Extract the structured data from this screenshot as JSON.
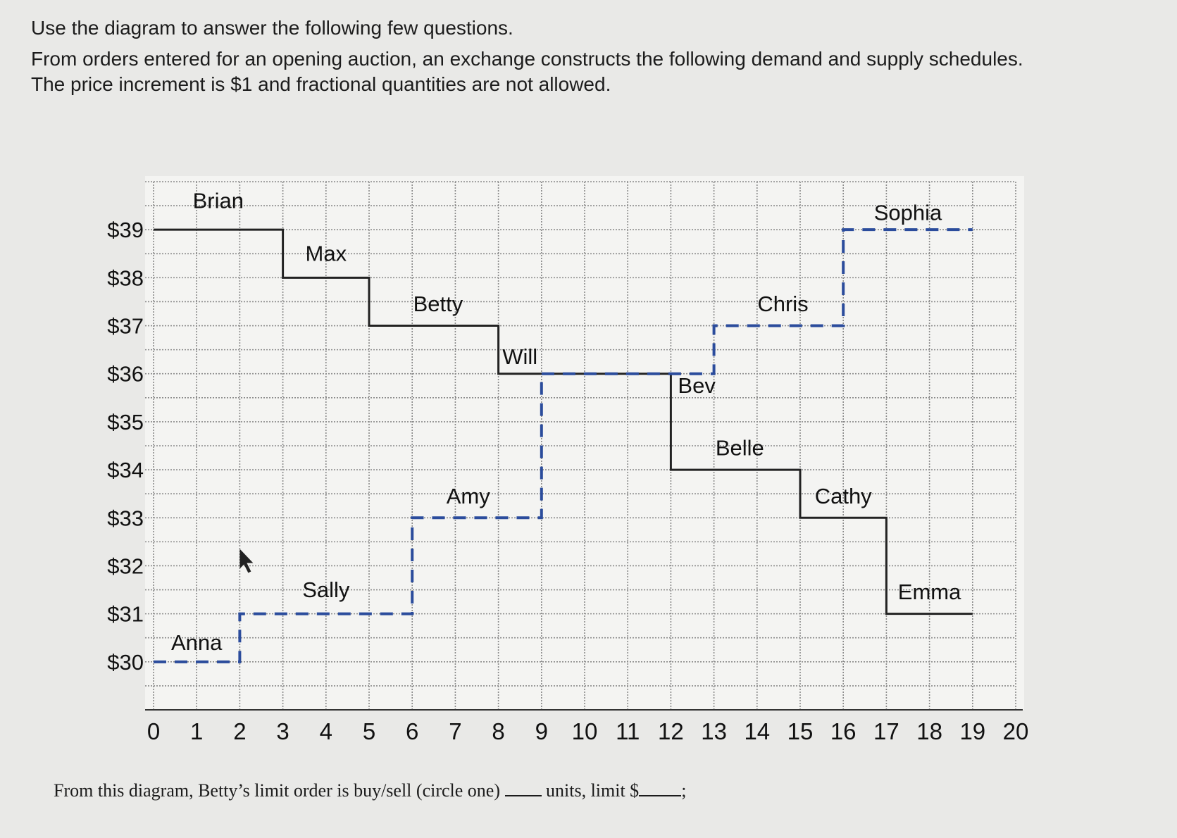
{
  "instructions": {
    "line1": "Use the diagram to answer the following few questions.",
    "line2": "From orders entered for an opening auction, an exchange constructs the following demand and supply schedules.",
    "line3": "The price increment is $1 and fractional quantities are not allowed."
  },
  "question": {
    "part1": "From this diagram, Betty’s limit order is buy/sell (circle one)",
    "part2": "units, limit $",
    "part3": ";"
  },
  "chart_data": {
    "type": "line",
    "x_ticks": [
      "0",
      "1",
      "2",
      "3",
      "4",
      "5",
      "6",
      "7",
      "8",
      "9",
      "10",
      "11",
      "12",
      "13",
      "14",
      "15",
      "16",
      "17",
      "18",
      "19",
      "20"
    ],
    "y_ticks": [
      "$30",
      "$31",
      "$32",
      "$33",
      "$34",
      "$35",
      "$36",
      "$37",
      "$38",
      "$39"
    ],
    "xlim": [
      0,
      20
    ],
    "ylim": [
      29,
      40
    ],
    "grid": true,
    "colors": {
      "demand": "#222222",
      "supply": "#2b4c9c"
    },
    "series": [
      {
        "style": "solid",
        "points": [
          [
            0,
            39
          ],
          [
            3,
            39
          ],
          [
            3,
            38
          ],
          [
            5,
            38
          ],
          [
            5,
            37
          ],
          [
            8,
            37
          ],
          [
            8,
            36
          ],
          [
            12,
            36
          ],
          [
            12,
            34
          ],
          [
            15,
            34
          ],
          [
            15,
            33
          ],
          [
            17,
            33
          ],
          [
            17,
            31
          ],
          [
            19,
            31
          ]
        ]
      },
      {
        "style": "dashed",
        "points": [
          [
            0,
            30
          ],
          [
            2,
            30
          ],
          [
            2,
            31
          ],
          [
            6,
            31
          ],
          [
            6,
            33
          ],
          [
            9,
            33
          ],
          [
            9,
            36
          ],
          [
            13,
            36
          ],
          [
            13,
            37
          ],
          [
            16,
            37
          ],
          [
            16,
            39
          ],
          [
            19,
            39
          ]
        ]
      }
    ],
    "annotations": [
      {
        "text": "Brian",
        "x": 1.5,
        "y": 39.45
      },
      {
        "text": "Max",
        "x": 4.0,
        "y": 38.35
      },
      {
        "text": "Betty",
        "x": 6.6,
        "y": 37.3
      },
      {
        "text": "Will",
        "x": 8.5,
        "y": 36.2
      },
      {
        "text": "Bev",
        "x": 12.6,
        "y": 35.6
      },
      {
        "text": "Belle",
        "x": 13.6,
        "y": 34.3
      },
      {
        "text": "Chris",
        "x": 14.6,
        "y": 37.3
      },
      {
        "text": "Sophia",
        "x": 17.5,
        "y": 39.2
      },
      {
        "text": "Cathy",
        "x": 16.0,
        "y": 33.3
      },
      {
        "text": "Emma",
        "x": 18.0,
        "y": 31.3
      },
      {
        "text": "Amy",
        "x": 7.3,
        "y": 33.3
      },
      {
        "text": "Sally",
        "x": 4.0,
        "y": 31.35
      },
      {
        "text": "Anna",
        "x": 1.0,
        "y": 30.25
      }
    ]
  }
}
